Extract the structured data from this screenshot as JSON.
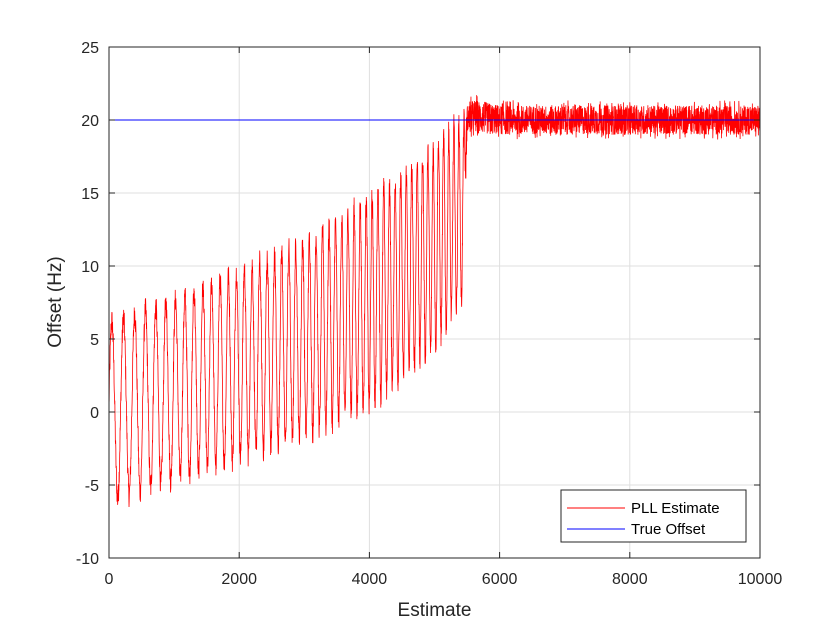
{
  "chart_data": {
    "type": "line",
    "title": "",
    "xlabel": "Estimate",
    "ylabel": "Offset (Hz)",
    "xlim": [
      0,
      10000
    ],
    "ylim": [
      -10,
      25
    ],
    "xticks": [
      0,
      2000,
      4000,
      6000,
      8000,
      10000
    ],
    "xtick_labels": [
      "0",
      "2000",
      "4000",
      "6000",
      "8000",
      "10000"
    ],
    "yticks": [
      -10,
      -5,
      0,
      5,
      10,
      15,
      20,
      25
    ],
    "ytick_labels": [
      "-10",
      "-5",
      "0",
      "5",
      "10",
      "15",
      "20",
      "25"
    ],
    "grid": true,
    "legend_location": "bottom-right",
    "series": [
      {
        "name": "PLL Estimate",
        "color": "#ff0000",
        "envelope": {
          "x": [
            0,
            1000,
            2000,
            3000,
            4000,
            4500,
            5000,
            5300,
            5450,
            5500,
            5600,
            6000,
            8000,
            10000
          ],
          "upper": [
            7,
            8.5,
            10.5,
            12.5,
            15.5,
            17,
            19,
            20.5,
            20.8,
            21.5,
            22,
            21.5,
            21.5,
            21.5
          ],
          "lower": [
            -7,
            -5.5,
            -4,
            -2.5,
            -0.5,
            1.5,
            3.5,
            6,
            7,
            18.5,
            18.5,
            18.5,
            18.5,
            18.5
          ]
        }
      },
      {
        "name": "True Offset",
        "color": "#0000ff",
        "x": [
          0,
          10000
        ],
        "y": [
          20,
          20
        ]
      }
    ]
  }
}
